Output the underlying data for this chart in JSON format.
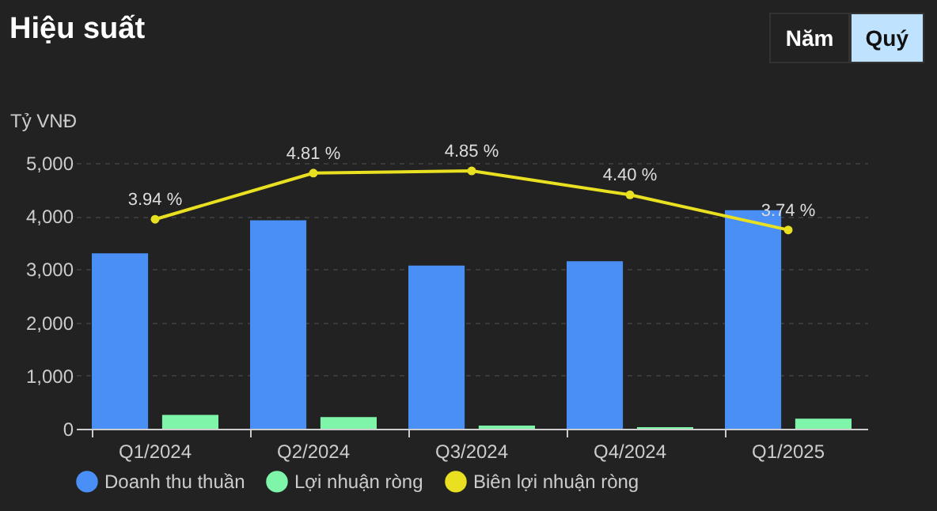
{
  "chart_data": {
    "type": "bar",
    "title": "Hiệu suất",
    "ylabel": "Tỷ VNĐ",
    "annotations": [
      "Năm",
      "Quý"
    ],
    "categories": [
      "Q1/2024",
      "Q2/2024",
      "Q3/2024",
      "Q4/2024",
      "Q1/2025"
    ],
    "series": [
      {
        "name": "Doanh thu thuần",
        "color": "#4a8ff5",
        "values": [
          3300,
          3920,
          3070,
          3150,
          4110
        ]
      },
      {
        "name": "Lợi nhuận ròng",
        "color": "#7ef5a8",
        "values": [
          260,
          220,
          60,
          30,
          190
        ]
      },
      {
        "name": "Biên lợi nhuận ròng",
        "type": "line",
        "axis": "y2",
        "color": "#e8e020",
        "values": [
          3.94,
          4.81,
          4.85,
          4.4,
          3.74
        ],
        "value_labels": [
          "3.94 %",
          "4.81 %",
          "4.85 %",
          "4.40 %",
          "3.74 %"
        ]
      }
    ],
    "ylim": [
      0,
      5000
    ],
    "yticks": [
      0,
      {
        "value": 1000,
        "label": "1,000"
      },
      {
        "value": 2000,
        "label": "2,000"
      },
      {
        "value": 3000,
        "label": "3,000"
      },
      {
        "value": 4000,
        "label": "4,000"
      },
      {
        "value": 5000,
        "label": "5,000"
      }
    ],
    "y2lim": [
      0,
      5
    ],
    "grid": "y",
    "legend": "bottom",
    "marker": "circle",
    "line_style": "solid"
  }
}
